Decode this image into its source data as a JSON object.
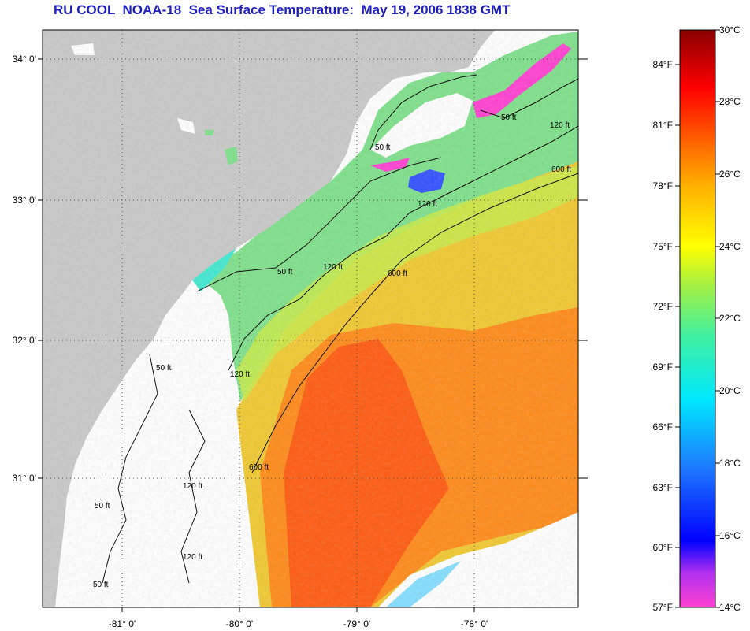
{
  "title": "RU COOL  NOAA-18  Sea Surface Temperature:  May 19, 2006 1838 GMT",
  "map": {
    "lat_labels": [
      "34° 0'",
      "33° 0'",
      "32° 0'",
      "31° 0'"
    ],
    "lon_labels": [
      "-81° 0'",
      "-80° 0'",
      "-79° 0'",
      "-78° 0'"
    ],
    "contour_labels": [
      "50 ft",
      "50 ft",
      "50 ft",
      "50 ft",
      "120 ft",
      "120 ft",
      "120 ft",
      "120 ft",
      "120 ft",
      "600 ft",
      "600 ft",
      "600 ft",
      "50 ft",
      "120 ft",
      "50 ft"
    ],
    "colors": {
      "land": "#c8c8c8",
      "no_data": "#ffffff",
      "shelf_cool": "#7ee08a",
      "warm_core": "#ff5a10",
      "gulf_stream": "#ff8a18",
      "outer_warm": "#f0c830",
      "cold_patch": "#ff40d0"
    }
  },
  "colorbar": {
    "fahrenheit": [
      "84°F",
      "81°F",
      "78°F",
      "75°F",
      "72°F",
      "69°F",
      "66°F",
      "63°F",
      "60°F",
      "57°F"
    ],
    "celsius": [
      "30°C",
      "28°C",
      "26°C",
      "24°C",
      "22°C",
      "20°C",
      "18°C",
      "16°C",
      "14°C"
    ],
    "stops": [
      "#ff40d0",
      "#a020ff",
      "#0000ff",
      "#1e78ff",
      "#00e8ff",
      "#40f0a0",
      "#a8f040",
      "#ffff00",
      "#ffb000",
      "#ff6a00",
      "#ff0000",
      "#8a0000"
    ]
  }
}
